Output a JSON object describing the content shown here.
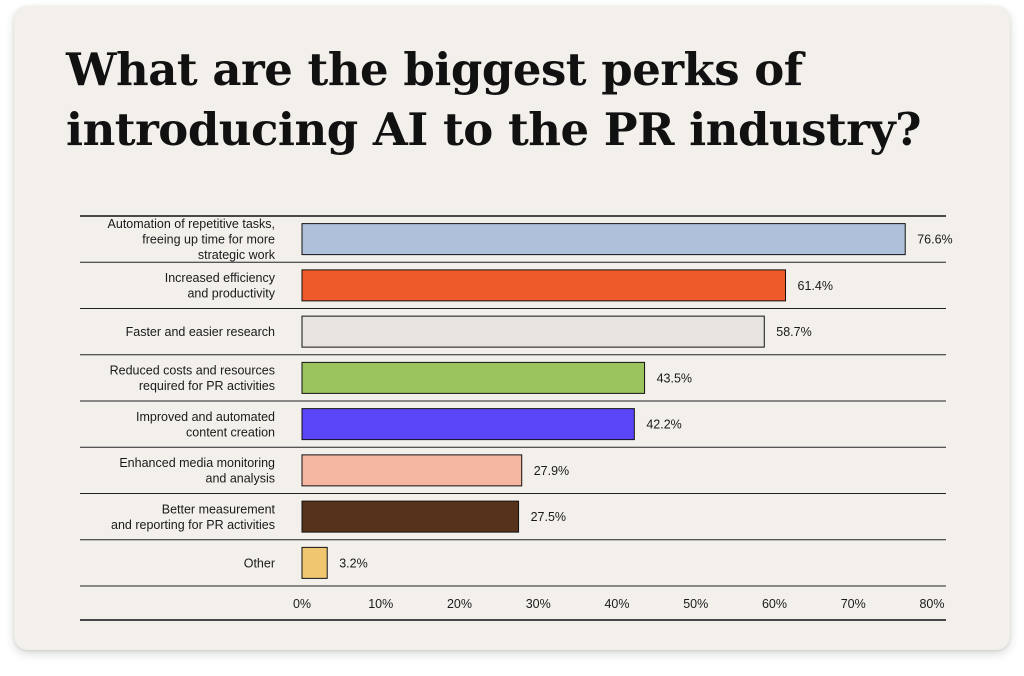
{
  "title_lines": [
    "What are the biggest perks of",
    "introducing AI to the PR industry?"
  ],
  "chart_data": {
    "type": "bar",
    "orientation": "horizontal",
    "categories": [
      [
        "Automation of repetitive tasks,",
        "freeing up time for more",
        "strategic work"
      ],
      [
        "Increased efficiency",
        "and productivity"
      ],
      [
        "Faster and easier research"
      ],
      [
        "Reduced costs and resources",
        "required for PR activities"
      ],
      [
        "Improved and automated",
        "content creation"
      ],
      [
        "Enhanced media monitoring",
        "and analysis"
      ],
      [
        "Better measurement",
        "and reporting for PR activities"
      ],
      [
        "Other"
      ]
    ],
    "values": [
      76.6,
      61.4,
      58.7,
      43.5,
      42.2,
      27.9,
      27.5,
      3.2
    ],
    "value_labels": [
      "76.6%",
      "61.4%",
      "58.7%",
      "43.5%",
      "42.2%",
      "27.9%",
      "27.5%",
      "3.2%"
    ],
    "colors": [
      "#aec0da",
      "#ef5a2b",
      "#e8e4df",
      "#9bc45e",
      "#5b45f9",
      "#f5b7a1",
      "#56321b",
      "#f0c770"
    ],
    "xlim": [
      0,
      80
    ],
    "x_ticks": [
      0,
      10,
      20,
      30,
      40,
      50,
      60,
      70,
      80
    ],
    "x_tick_labels": [
      "0%",
      "10%",
      "20%",
      "30%",
      "40%",
      "50%",
      "60%",
      "70%",
      "80%"
    ],
    "grid": false,
    "legend": "none"
  }
}
